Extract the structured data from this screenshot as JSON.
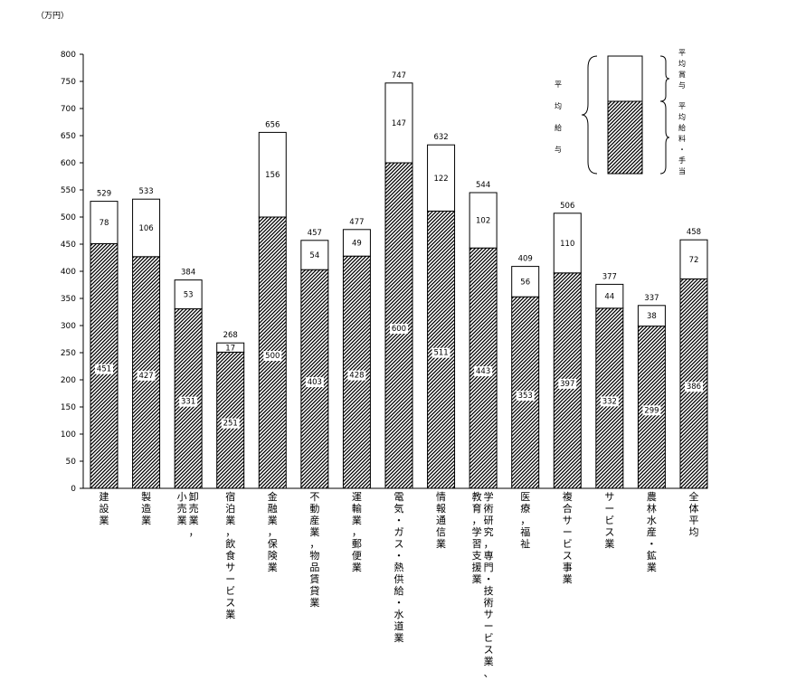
{
  "chart_data": {
    "type": "bar",
    "stacked": true,
    "unit_label": "（万円）",
    "ylim": [
      0,
      800
    ],
    "yticks": [
      0,
      50,
      100,
      150,
      200,
      250,
      300,
      350,
      400,
      450,
      500,
      550,
      600,
      650,
      700,
      750,
      800
    ],
    "categories": [
      "建設業",
      "製造業",
      "卸売業，小売業",
      "宿泊業，飲食サービス業",
      "金融業，保険業",
      "不動産業，物品賃貸業",
      "運輸業，郵便業",
      "電気・ガス・熱供給・水道業",
      "情報通信業",
      "学術研究，専門・技術サービス業、教育，学習支援業",
      "医療，福祉",
      "複合サービス事業",
      "サービス業",
      "農林水産・鉱業",
      "全体平均"
    ],
    "category_lines": [
      [
        "建設業"
      ],
      [
        "製造業"
      ],
      [
        "卸売業，",
        "小売業"
      ],
      [
        "宿泊業，飲食サービス業"
      ],
      [
        "金融業，保険業"
      ],
      [
        "不動産業，物品賃貸業"
      ],
      [
        "運輸業，郵便業"
      ],
      [
        "電気・ガス・熱供給・水道業"
      ],
      [
        "情報通信業"
      ],
      [
        "学術研究，専門・技術サービス業、",
        "教育，学習支援業"
      ],
      [
        "医療，福祉"
      ],
      [
        "複合サービス事業"
      ],
      [
        "サービス業"
      ],
      [
        "農林水産・鉱業"
      ],
      [
        "全体平均"
      ]
    ],
    "series": [
      {
        "name": "平均給料・手当",
        "values": [
          451,
          427,
          331,
          251,
          500,
          403,
          428,
          600,
          511,
          443,
          353,
          397,
          332,
          299,
          386
        ]
      },
      {
        "name": "平均賞与",
        "values": [
          78,
          106,
          53,
          17,
          156,
          54,
          49,
          147,
          122,
          102,
          56,
          110,
          44,
          38,
          72
        ]
      }
    ],
    "totals": [
      529,
      533,
      384,
      268,
      656,
      457,
      477,
      747,
      632,
      544,
      409,
      506,
      377,
      337,
      458
    ],
    "legend": {
      "placement": "top-right",
      "total_label": "平均給与",
      "bonus_label": "平均賞与",
      "salary_label": "平均給料・手当"
    }
  }
}
